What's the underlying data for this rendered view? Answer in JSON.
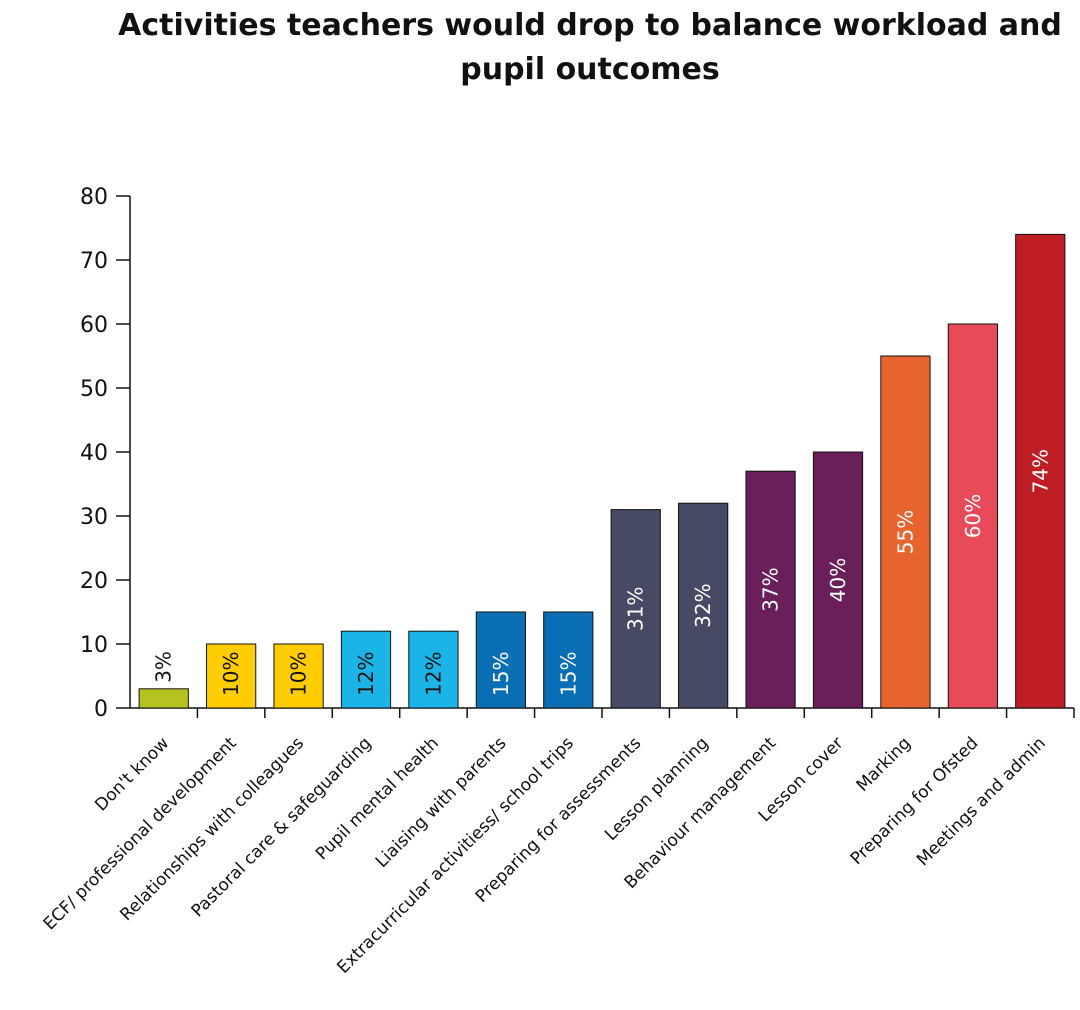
{
  "chart_data": {
    "type": "bar",
    "title": "Activities teachers would drop to balance workload and pupil outcomes",
    "xlabel": "",
    "ylabel": "",
    "ylim": [
      0,
      80
    ],
    "yticks": [
      "0",
      "10",
      "20",
      "30",
      "40",
      "50",
      "60",
      "70",
      "80"
    ],
    "grid": false,
    "categories": [
      "Don't know",
      "ECF/ professional development",
      "Relationships with colleagues",
      "Pastoral care & safeguarding",
      "Pupil mental health",
      "Liaising with parents",
      "Extracurricular activitiess/ school trips",
      "Preparing for assessments",
      "Lesson planning",
      "Behaviour management",
      "Lesson cover",
      "Marking",
      "Preparing for Ofsted",
      "Meetings and admin"
    ],
    "values": [
      3,
      10,
      10,
      12,
      12,
      15,
      15,
      31,
      32,
      37,
      40,
      55,
      60,
      74
    ],
    "data_labels": [
      "3%",
      "10%",
      "10%",
      "12%",
      "12%",
      "15%",
      "15%",
      "31%",
      "32%",
      "37%",
      "40%",
      "55%",
      "60%",
      "74%"
    ],
    "colors": [
      "#b5c320",
      "#ffcc00",
      "#ffcc00",
      "#1ab4e6",
      "#1ab4e6",
      "#0a6eb4",
      "#0a6eb4",
      "#464a64",
      "#464a64",
      "#6a1f5a",
      "#6a1f5a",
      "#e8642e",
      "#e84a5a",
      "#be1e24"
    ],
    "label_colors": [
      "#111111",
      "#111111",
      "#111111",
      "#111111",
      "#111111",
      "#ffffff",
      "#ffffff",
      "#ffffff",
      "#ffffff",
      "#ffffff",
      "#ffffff",
      "#ffffff",
      "#ffffff",
      "#ffffff"
    ]
  }
}
